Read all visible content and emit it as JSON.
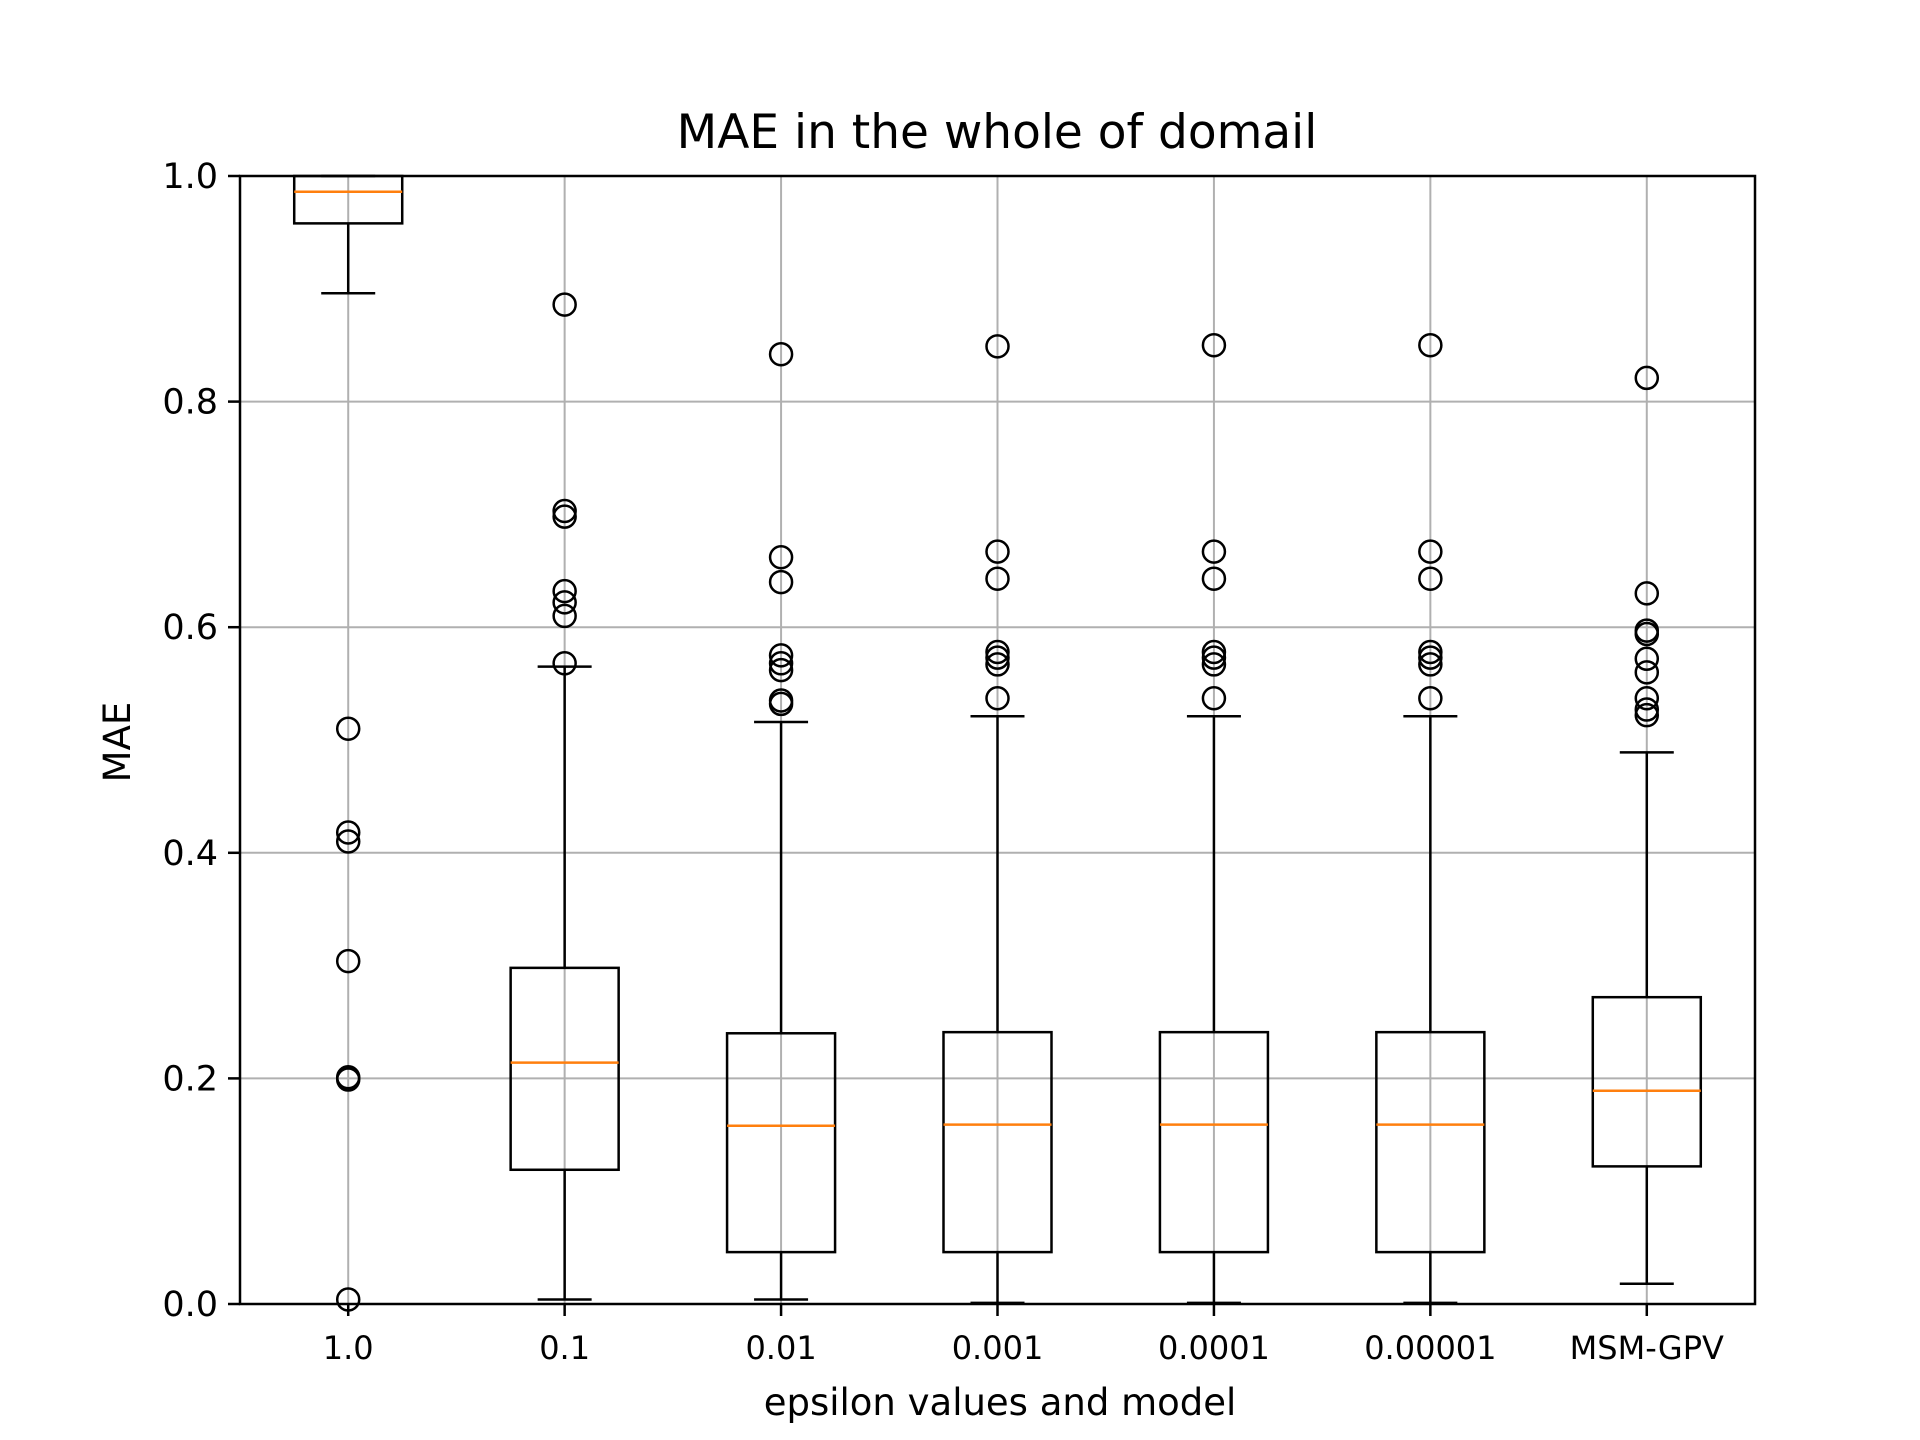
{
  "chart_data": {
    "type": "box",
    "title": "MAE in the whole of domail",
    "xlabel": "epsilon values and model",
    "ylabel": "MAE",
    "ylim": [
      0.0,
      1.0
    ],
    "yticks": [
      "0.0",
      "0.2",
      "0.4",
      "0.6",
      "0.8",
      "1.0"
    ],
    "grid": true,
    "colors": {
      "box": "#000000",
      "median": "#ff7f0e",
      "grid": "#b0b0b0"
    },
    "categories": [
      "1.0",
      "0.1",
      "0.01",
      "0.001",
      "0.0001",
      "0.00001",
      "MSM-GPV"
    ],
    "boxes": [
      {
        "label": "1.0",
        "whisker_low": 0.896,
        "q1": 0.958,
        "median": 0.986,
        "q3": 1.0,
        "whisker_high": 1.0,
        "outliers": [
          0.51,
          0.418,
          0.41,
          0.304,
          0.201,
          0.199,
          0.004
        ]
      },
      {
        "label": "0.1",
        "whisker_low": 0.004,
        "q1": 0.119,
        "median": 0.214,
        "q3": 0.298,
        "whisker_high": 0.565,
        "outliers": [
          0.886,
          0.703,
          0.698,
          0.632,
          0.622,
          0.61,
          0.568
        ]
      },
      {
        "label": "0.01",
        "whisker_low": 0.004,
        "q1": 0.046,
        "median": 0.158,
        "q3": 0.24,
        "whisker_high": 0.516,
        "outliers": [
          0.842,
          0.662,
          0.64,
          0.575,
          0.568,
          0.562,
          0.535,
          0.532
        ]
      },
      {
        "label": "0.001",
        "whisker_low": 0.001,
        "q1": 0.046,
        "median": 0.159,
        "q3": 0.241,
        "whisker_high": 0.521,
        "outliers": [
          0.849,
          0.667,
          0.643,
          0.578,
          0.573,
          0.567,
          0.537
        ]
      },
      {
        "label": "0.0001",
        "whisker_low": 0.001,
        "q1": 0.046,
        "median": 0.159,
        "q3": 0.241,
        "whisker_high": 0.521,
        "outliers": [
          0.85,
          0.667,
          0.643,
          0.578,
          0.573,
          0.567,
          0.537
        ]
      },
      {
        "label": "0.00001",
        "whisker_low": 0.001,
        "q1": 0.046,
        "median": 0.159,
        "q3": 0.241,
        "whisker_high": 0.521,
        "outliers": [
          0.85,
          0.667,
          0.643,
          0.578,
          0.573,
          0.567,
          0.537
        ]
      },
      {
        "label": "MSM-GPV",
        "whisker_low": 0.018,
        "q1": 0.122,
        "median": 0.189,
        "q3": 0.272,
        "whisker_high": 0.489,
        "outliers": [
          0.821,
          0.63,
          0.597,
          0.594,
          0.572,
          0.56,
          0.537,
          0.527,
          0.522
        ]
      }
    ]
  }
}
